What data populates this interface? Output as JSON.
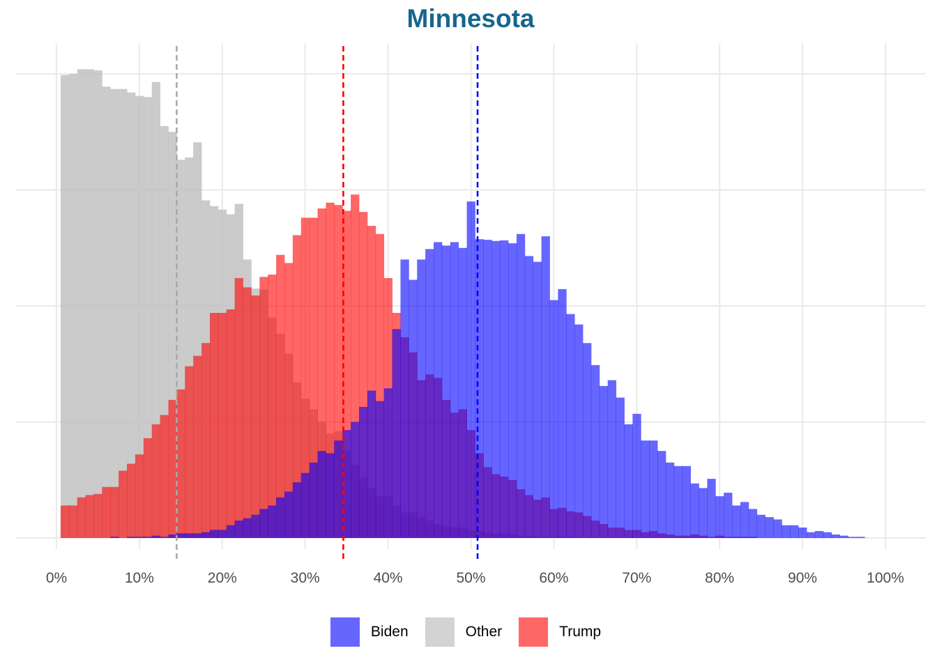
{
  "chart_data": {
    "type": "histogram",
    "title": "Minnesota",
    "xlabel": "",
    "ylabel": "",
    "xlim": [
      0,
      1
    ],
    "x_ticks": [
      0,
      0.1,
      0.2,
      0.3,
      0.4,
      0.5,
      0.6,
      0.7,
      0.8,
      0.9,
      1.0
    ],
    "x_tick_labels": [
      "0%",
      "10%",
      "20%",
      "30%",
      "40%",
      "50%",
      "60%",
      "70%",
      "80%",
      "90%",
      "100%"
    ],
    "y_ticks_shown": false,
    "y_gridlines": [
      0,
      200,
      400,
      600,
      800
    ],
    "ylim": [
      -20,
      830
    ],
    "grid": true,
    "bin_start": 0.005,
    "bin_width": 0.01,
    "legend": {
      "position": "bottom"
    },
    "series": [
      {
        "name": "Biden",
        "color": "#6666ff",
        "mean_line": 0.508,
        "line_color": "#0000ff",
        "counts": [
          0,
          0,
          0,
          0,
          0,
          0,
          2,
          0,
          2,
          2,
          2,
          4,
          2,
          6,
          8,
          8,
          8,
          10,
          14,
          14,
          22,
          30,
          34,
          40,
          50,
          56,
          70,
          80,
          96,
          112,
          130,
          150,
          146,
          168,
          186,
          200,
          226,
          254,
          236,
          258,
          360,
          480,
          445,
          480,
          498,
          510,
          504,
          510,
          500,
          580,
          515,
          514,
          512,
          513,
          508,
          524,
          486,
          476,
          520,
          410,
          429,
          386,
          368,
          336,
          298,
          262,
          272,
          242,
          196,
          214,
          168,
          168,
          150,
          130,
          124,
          124,
          94,
          86,
          102,
          72,
          78,
          56,
          62,
          50,
          40,
          36,
          32,
          22,
          22,
          18,
          10,
          12,
          10,
          6,
          4,
          2,
          2,
          0,
          0,
          0
        ]
      },
      {
        "name": "Other",
        "color": "#d3d3d3",
        "mean_line": 0.145,
        "line_color": "#a9a9a9",
        "counts": [
          798,
          800,
          808,
          808,
          806,
          778,
          774,
          774,
          768,
          762,
          760,
          786,
          710,
          700,
          652,
          656,
          682,
          582,
          572,
          566,
          558,
          576,
          480,
          430,
          428,
          380,
          352,
          318,
          268,
          240,
          222,
          200,
          180,
          184,
          150,
          126,
          104,
          86,
          72,
          72,
          56,
          44,
          44,
          36,
          30,
          24,
          20,
          18,
          18,
          14,
          12,
          10,
          8,
          8,
          6,
          4,
          4,
          2,
          2,
          2,
          2,
          2,
          0,
          0,
          0,
          0,
          0,
          0,
          0,
          0,
          0,
          0,
          0,
          0,
          0,
          0,
          0,
          0,
          0,
          0,
          0,
          0,
          0,
          0,
          0,
          0,
          0,
          0,
          0,
          0,
          0,
          0,
          0,
          0,
          0,
          0,
          0,
          0,
          0,
          0
        ]
      },
      {
        "name": "Trump",
        "color": "#ff6666",
        "mean_line": 0.346,
        "line_color": "#ff0000",
        "counts": [
          56,
          56,
          70,
          74,
          76,
          88,
          88,
          116,
          128,
          144,
          172,
          196,
          212,
          238,
          256,
          296,
          314,
          336,
          388,
          388,
          394,
          448,
          432,
          418,
          450,
          454,
          488,
          474,
          522,
          552,
          552,
          568,
          578,
          574,
          564,
          592,
          562,
          538,
          524,
          448,
          388,
          346,
          320,
          272,
          282,
          276,
          238,
          216,
          222,
          186,
          146,
          122,
          110,
          106,
          100,
          84,
          74,
          66,
          70,
          50,
          52,
          46,
          44,
          38,
          30,
          24,
          18,
          18,
          14,
          14,
          10,
          12,
          8,
          6,
          4,
          4,
          6,
          4,
          2,
          4,
          2,
          2,
          2,
          2,
          0,
          0,
          0,
          0,
          0,
          0,
          0,
          0,
          0,
          0,
          0,
          0,
          0,
          0,
          0,
          0
        ]
      }
    ]
  }
}
